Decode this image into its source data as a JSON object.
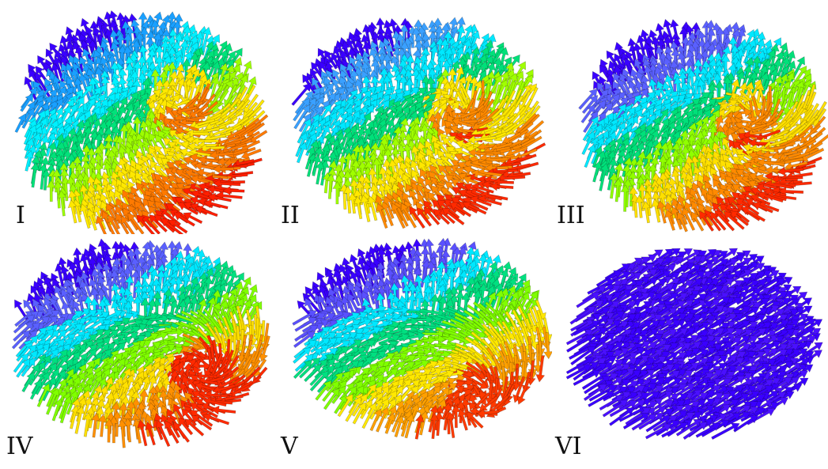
{
  "panels": [
    {
      "label": "I",
      "colors": [
        "#ff1f00",
        "#ff7a00",
        "#ffe800",
        "#9dff00",
        "#00e27a",
        "#00f0ff",
        "#1aa0ff",
        "#3a00ff"
      ]
    },
    {
      "label": "II",
      "colors": [
        "#ff2a00",
        "#ff8a00",
        "#ffe800",
        "#a0ff00",
        "#00e07a",
        "#00e8ff",
        "#3aa0ff",
        "#3a00ff"
      ]
    },
    {
      "label": "III",
      "colors": [
        "#ff2a00",
        "#ff8a00",
        "#ffe000",
        "#90ff00",
        "#00e07a",
        "#00e8ff",
        "#5a60ff",
        "#3a00ff"
      ]
    },
    {
      "label": "IV",
      "colors": [
        "#ff2a00",
        "#ff9000",
        "#ffe000",
        "#80ff00",
        "#00e080",
        "#00e8ff",
        "#5a60ff",
        "#3a00ff"
      ]
    },
    {
      "label": "V",
      "colors": [
        "#ff3a00",
        "#ffa000",
        "#ffe800",
        "#80ff00",
        "#00e080",
        "#00e8ff",
        "#5a50ff",
        "#3a00ff"
      ]
    },
    {
      "label": "VI",
      "colors": [
        "#3a00ff",
        "#4a10ff",
        "#3a00ff",
        "#4a10ff",
        "#3a00ff",
        "#4a10ff",
        "#3a00ff",
        "#3a00ff"
      ]
    }
  ]
}
